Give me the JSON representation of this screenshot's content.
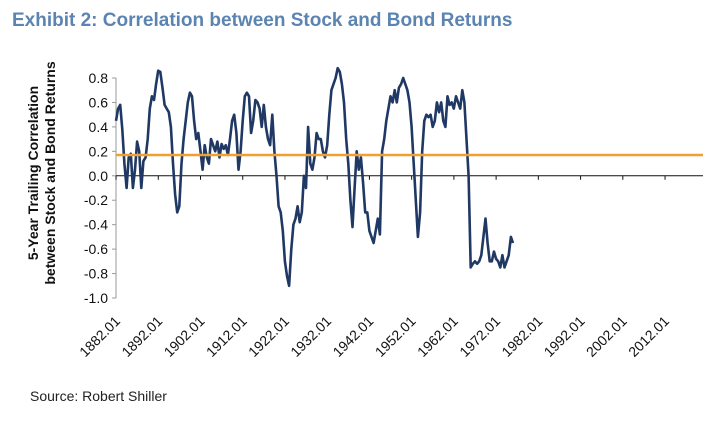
{
  "title": "Exhibit 2: Correlation between Stock and Bond Returns",
  "source": "Source: Robert Shiller",
  "chart_data": {
    "type": "line",
    "ylabel_lines": [
      "5-Year Trailing Correlation",
      "between Stock and Bond Returns"
    ],
    "xlim": [
      1882,
      2021
    ],
    "ylim": [
      -1.0,
      0.8
    ],
    "yticks": [
      "0.8",
      "0.6",
      "0.4",
      "0.2",
      "0.0",
      "-0.2",
      "-0.4",
      "-0.6",
      "-0.8",
      "-1.0"
    ],
    "xticks": [
      "1882.01",
      "1892.01",
      "1902.01",
      "1912.01",
      "1922.01",
      "1932.01",
      "1942.01",
      "1952.01",
      "1962.01",
      "1972.01",
      "1982.01",
      "1992.01",
      "2002.01",
      "2012.01"
    ],
    "series": [
      {
        "color": "#1f3864",
        "points": [
          [
            1882.0,
            0.45
          ],
          [
            1882.5,
            0.55
          ],
          [
            1883.0,
            0.58
          ],
          [
            1883.5,
            0.38
          ],
          [
            1884.0,
            0.1
          ],
          [
            1884.5,
            -0.1
          ],
          [
            1885.0,
            0.15
          ],
          [
            1885.5,
            0.18
          ],
          [
            1886.0,
            -0.1
          ],
          [
            1886.5,
            0.05
          ],
          [
            1887.0,
            0.28
          ],
          [
            1887.5,
            0.2
          ],
          [
            1888.0,
            -0.1
          ],
          [
            1888.5,
            0.12
          ],
          [
            1889.0,
            0.15
          ],
          [
            1889.5,
            0.3
          ],
          [
            1890.0,
            0.55
          ],
          [
            1890.5,
            0.65
          ],
          [
            1891.0,
            0.62
          ],
          [
            1891.5,
            0.75
          ],
          [
            1892.0,
            0.86
          ],
          [
            1892.5,
            0.85
          ],
          [
            1893.0,
            0.72
          ],
          [
            1893.5,
            0.58
          ],
          [
            1894.0,
            0.55
          ],
          [
            1894.5,
            0.52
          ],
          [
            1895.0,
            0.4
          ],
          [
            1895.5,
            0.1
          ],
          [
            1896.0,
            -0.15
          ],
          [
            1896.5,
            -0.3
          ],
          [
            1897.0,
            -0.25
          ],
          [
            1897.5,
            0.1
          ],
          [
            1898.0,
            0.3
          ],
          [
            1898.5,
            0.45
          ],
          [
            1899.0,
            0.6
          ],
          [
            1899.5,
            0.68
          ],
          [
            1900.0,
            0.65
          ],
          [
            1900.5,
            0.45
          ],
          [
            1901.0,
            0.3
          ],
          [
            1901.5,
            0.35
          ],
          [
            1902.0,
            0.2
          ],
          [
            1902.5,
            0.05
          ],
          [
            1903.0,
            0.25
          ],
          [
            1903.5,
            0.15
          ],
          [
            1904.0,
            0.1
          ],
          [
            1904.5,
            0.3
          ],
          [
            1905.0,
            0.25
          ],
          [
            1905.5,
            0.2
          ],
          [
            1906.0,
            0.28
          ],
          [
            1906.5,
            0.15
          ],
          [
            1907.0,
            0.26
          ],
          [
            1907.5,
            0.22
          ],
          [
            1908.0,
            0.25
          ],
          [
            1908.5,
            0.17
          ],
          [
            1909.0,
            0.3
          ],
          [
            1909.5,
            0.45
          ],
          [
            1910.0,
            0.5
          ],
          [
            1910.5,
            0.35
          ],
          [
            1911.0,
            0.05
          ],
          [
            1911.5,
            0.2
          ],
          [
            1912.0,
            0.45
          ],
          [
            1912.5,
            0.65
          ],
          [
            1913.0,
            0.68
          ],
          [
            1913.5,
            0.65
          ],
          [
            1914.0,
            0.35
          ],
          [
            1914.5,
            0.45
          ],
          [
            1915.0,
            0.62
          ],
          [
            1915.5,
            0.6
          ],
          [
            1916.0,
            0.55
          ],
          [
            1916.5,
            0.4
          ],
          [
            1917.0,
            0.58
          ],
          [
            1917.5,
            0.4
          ],
          [
            1918.0,
            0.3
          ],
          [
            1918.5,
            0.25
          ],
          [
            1919.0,
            0.5
          ],
          [
            1919.5,
            0.2
          ],
          [
            1920.0,
            0.0
          ],
          [
            1920.5,
            -0.25
          ],
          [
            1921.0,
            -0.3
          ],
          [
            1921.5,
            -0.45
          ],
          [
            1922.0,
            -0.7
          ],
          [
            1922.5,
            -0.82
          ],
          [
            1923.0,
            -0.9
          ],
          [
            1923.5,
            -0.6
          ],
          [
            1924.0,
            -0.4
          ],
          [
            1924.5,
            -0.35
          ],
          [
            1925.0,
            -0.25
          ],
          [
            1925.5,
            -0.38
          ],
          [
            1926.0,
            -0.3
          ],
          [
            1926.5,
            0.0
          ],
          [
            1927.0,
            -0.1
          ],
          [
            1927.5,
            0.4
          ],
          [
            1928.0,
            0.1
          ],
          [
            1928.5,
            0.05
          ],
          [
            1929.0,
            0.15
          ],
          [
            1929.5,
            0.35
          ],
          [
            1930.0,
            0.3
          ],
          [
            1930.5,
            0.3
          ],
          [
            1931.0,
            0.2
          ],
          [
            1931.5,
            0.15
          ],
          [
            1932.0,
            0.25
          ],
          [
            1932.5,
            0.5
          ],
          [
            1933.0,
            0.7
          ],
          [
            1933.5,
            0.75
          ],
          [
            1934.0,
            0.8
          ],
          [
            1934.5,
            0.88
          ],
          [
            1935.0,
            0.85
          ],
          [
            1935.5,
            0.75
          ],
          [
            1936.0,
            0.6
          ],
          [
            1936.5,
            0.3
          ],
          [
            1937.0,
            0.1
          ],
          [
            1937.5,
            -0.2
          ],
          [
            1938.0,
            -0.42
          ],
          [
            1938.5,
            -0.1
          ],
          [
            1939.0,
            0.2
          ],
          [
            1939.5,
            0.05
          ],
          [
            1940.0,
            0.15
          ],
          [
            1940.5,
            -0.05
          ],
          [
            1941.0,
            -0.3
          ],
          [
            1941.5,
            -0.3
          ],
          [
            1942.0,
            -0.45
          ],
          [
            1942.5,
            -0.5
          ],
          [
            1943.0,
            -0.55
          ],
          [
            1943.5,
            -0.45
          ],
          [
            1944.0,
            -0.35
          ],
          [
            1944.5,
            -0.48
          ],
          [
            1945.0,
            0.2
          ],
          [
            1945.5,
            0.3
          ],
          [
            1946.0,
            0.45
          ],
          [
            1946.5,
            0.55
          ],
          [
            1947.0,
            0.65
          ],
          [
            1947.5,
            0.6
          ],
          [
            1948.0,
            0.7
          ],
          [
            1948.5,
            0.6
          ],
          [
            1949.0,
            0.72
          ],
          [
            1949.5,
            0.75
          ],
          [
            1950.0,
            0.8
          ],
          [
            1950.5,
            0.75
          ],
          [
            1951.0,
            0.7
          ],
          [
            1951.5,
            0.6
          ],
          [
            1952.0,
            0.4
          ],
          [
            1952.5,
            0.1
          ],
          [
            1953.0,
            -0.2
          ],
          [
            1953.5,
            -0.5
          ],
          [
            1954.0,
            -0.3
          ],
          [
            1954.5,
            0.2
          ],
          [
            1955.0,
            0.45
          ],
          [
            1955.5,
            0.5
          ],
          [
            1956.0,
            0.48
          ],
          [
            1956.5,
            0.5
          ],
          [
            1957.0,
            0.4
          ],
          [
            1957.5,
            0.45
          ],
          [
            1958.0,
            0.6
          ],
          [
            1958.5,
            0.52
          ],
          [
            1959.0,
            0.6
          ],
          [
            1959.5,
            0.45
          ],
          [
            1960.0,
            0.4
          ],
          [
            1960.5,
            0.65
          ],
          [
            1961.0,
            0.58
          ],
          [
            1961.5,
            0.6
          ],
          [
            1962.0,
            0.55
          ],
          [
            1962.5,
            0.65
          ],
          [
            1963.0,
            0.6
          ],
          [
            1963.5,
            0.55
          ],
          [
            1964.0,
            0.7
          ],
          [
            1964.5,
            0.6
          ],
          [
            1965.0,
            0.3
          ],
          [
            1965.5,
            0.0
          ],
          [
            1966.0,
            -0.75
          ],
          [
            1966.5,
            -0.72
          ],
          [
            1967.0,
            -0.7
          ],
          [
            1967.5,
            -0.72
          ],
          [
            1968.0,
            -0.7
          ],
          [
            1968.5,
            -0.65
          ],
          [
            1969.0,
            -0.5
          ],
          [
            1969.5,
            -0.35
          ],
          [
            1970.0,
            -0.55
          ],
          [
            1970.5,
            -0.7
          ],
          [
            1971.0,
            -0.7
          ],
          [
            1971.5,
            -0.62
          ],
          [
            1972.0,
            -0.68
          ],
          [
            1972.5,
            -0.7
          ],
          [
            1973.0,
            -0.75
          ],
          [
            1973.5,
            -0.65
          ],
          [
            1974.0,
            -0.75
          ],
          [
            1974.5,
            -0.7
          ],
          [
            1975.0,
            -0.65
          ],
          [
            1975.5,
            -0.5
          ],
          [
            1976.0,
            -0.55
          ]
        ]
      }
    ],
    "reference_lines": [
      {
        "y": 0.17,
        "color": "#f0a030"
      }
    ]
  }
}
